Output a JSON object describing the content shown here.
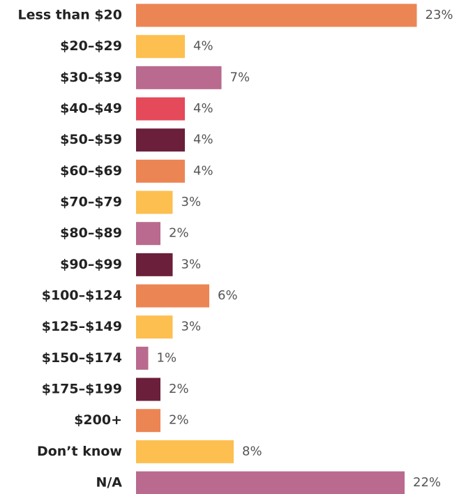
{
  "chart_data": {
    "type": "bar",
    "orientation": "horizontal",
    "categories": [
      "Less than $20",
      "$20–$29",
      "$30–$39",
      "$40–$49",
      "$50–$59",
      "$60–$69",
      "$70–$79",
      "$80–$89",
      "$90–$99",
      "$100–$124",
      "$125–$149",
      "$150–$174",
      "$175–$199",
      "$200+",
      "Don’t know",
      "N/A"
    ],
    "values": [
      23,
      4,
      7,
      4,
      4,
      4,
      3,
      2,
      3,
      6,
      3,
      1,
      2,
      2,
      8,
      22
    ],
    "value_labels": [
      "23%",
      "4%",
      "7%",
      "4%",
      "4%",
      "4%",
      "3%",
      "2%",
      "3%",
      "6%",
      "3%",
      "1%",
      "2%",
      "2%",
      "8%",
      "22%"
    ],
    "colors": [
      "#ec8554",
      "#fdbf50",
      "#b96a8e",
      "#e54a5a",
      "#6b1f3a",
      "#ec8554",
      "#fdbf50",
      "#b96a8e",
      "#6b1f3a",
      "#ec8554",
      "#fdbf50",
      "#b96a8e",
      "#6b1f3a",
      "#ec8554",
      "#fdbf50",
      "#b96a8e"
    ]
  }
}
